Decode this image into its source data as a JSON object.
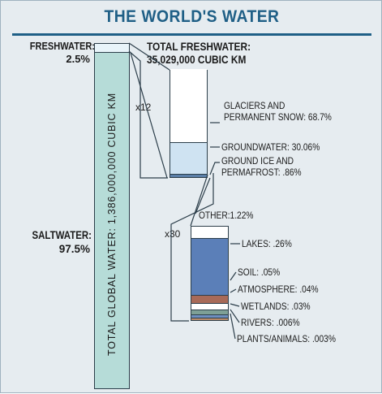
{
  "title": "THE WORLD'S WATER",
  "total_column": {
    "label": "TOTAL GLOBAL WATER: 1,386,000,000 CUBIC KM",
    "freshwater_label": "FRESHWATER:",
    "freshwater_pct": "2.5%",
    "saltwater_label": "SALTWATER:",
    "saltwater_pct": "97.5%"
  },
  "freshwater_column": {
    "title_line1": "TOTAL FRESHWATER:",
    "title_line2": "35,029,000 CUBIC KM",
    "magnification": "x12",
    "items": [
      {
        "label_line1": "GLACIERS AND",
        "label_line2": "PERMANENT SNOW: 68.7%",
        "value": 68.7,
        "color": "#ffffff"
      },
      {
        "label_line1": "GROUNDWATER: 30.06%",
        "label_line2": "",
        "value": 30.06,
        "color": "#cfe3f2"
      },
      {
        "label_line1": "GROUND ICE AND",
        "label_line2": "PERMAFROST: .86%",
        "value": 0.86,
        "color": "#5b7fa8"
      }
    ]
  },
  "other_column": {
    "title": "OTHER:1.22%",
    "magnification": "x30",
    "items": [
      {
        "label": "LAKES: .26%",
        "value": 0.26,
        "color": "#5b7fb8"
      },
      {
        "label": "SOIL: .05%",
        "value": 0.05,
        "color": "#a86a58"
      },
      {
        "label": "ATMOSPHERE: .04%",
        "value": 0.04,
        "color": "#ffffff"
      },
      {
        "label": "WETLANDS: .03%",
        "value": 0.03,
        "color": "#7ea096"
      },
      {
        "label": "RIVERS: .006%",
        "value": 0.006,
        "color": "#6f8fbf"
      },
      {
        "label": "PLANTS/ANIMALS: .003%",
        "value": 0.003,
        "color": "#b98a6a"
      }
    ]
  },
  "colors": {
    "title": "#1f5f86",
    "saltwater": "#b6dcd8",
    "freshwater_bar": "#e8f4fa",
    "background": "#e6ecf0",
    "outline": "#2c3e4a"
  }
}
